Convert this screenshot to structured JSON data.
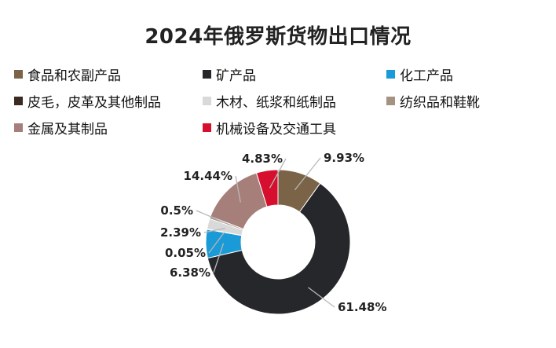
{
  "chart_data": {
    "type": "pie",
    "title": "2024年俄罗斯货物出口情况",
    "donut": true,
    "legend_position": "top",
    "slices": [
      {
        "name": "食品和农副产品",
        "value": 9.93,
        "label": "9.93%",
        "color": "#7a6346"
      },
      {
        "name": "矿产品",
        "value": 61.48,
        "label": "61.48%",
        "color": "#25272b"
      },
      {
        "name": "化工产品",
        "value": 6.38,
        "label": "6.38%",
        "color": "#1a9ad6"
      },
      {
        "name": "皮毛，皮革及其他制品",
        "value": 0.05,
        "label": "0.05%",
        "color": "#3a2a24"
      },
      {
        "name": "木材、纸浆和纸制品",
        "value": 2.39,
        "label": "2.39%",
        "color": "#d9d9d9"
      },
      {
        "name": "纺织品和鞋靴",
        "value": 0.5,
        "label": "0.5%",
        "color": "#a39380"
      },
      {
        "name": "金属及其制品",
        "value": 14.44,
        "label": "14.44%",
        "color": "#a67f7a"
      },
      {
        "name": "机械设备及交通工具",
        "value": 4.83,
        "label": "4.83%",
        "color": "#d60f2e"
      }
    ]
  }
}
